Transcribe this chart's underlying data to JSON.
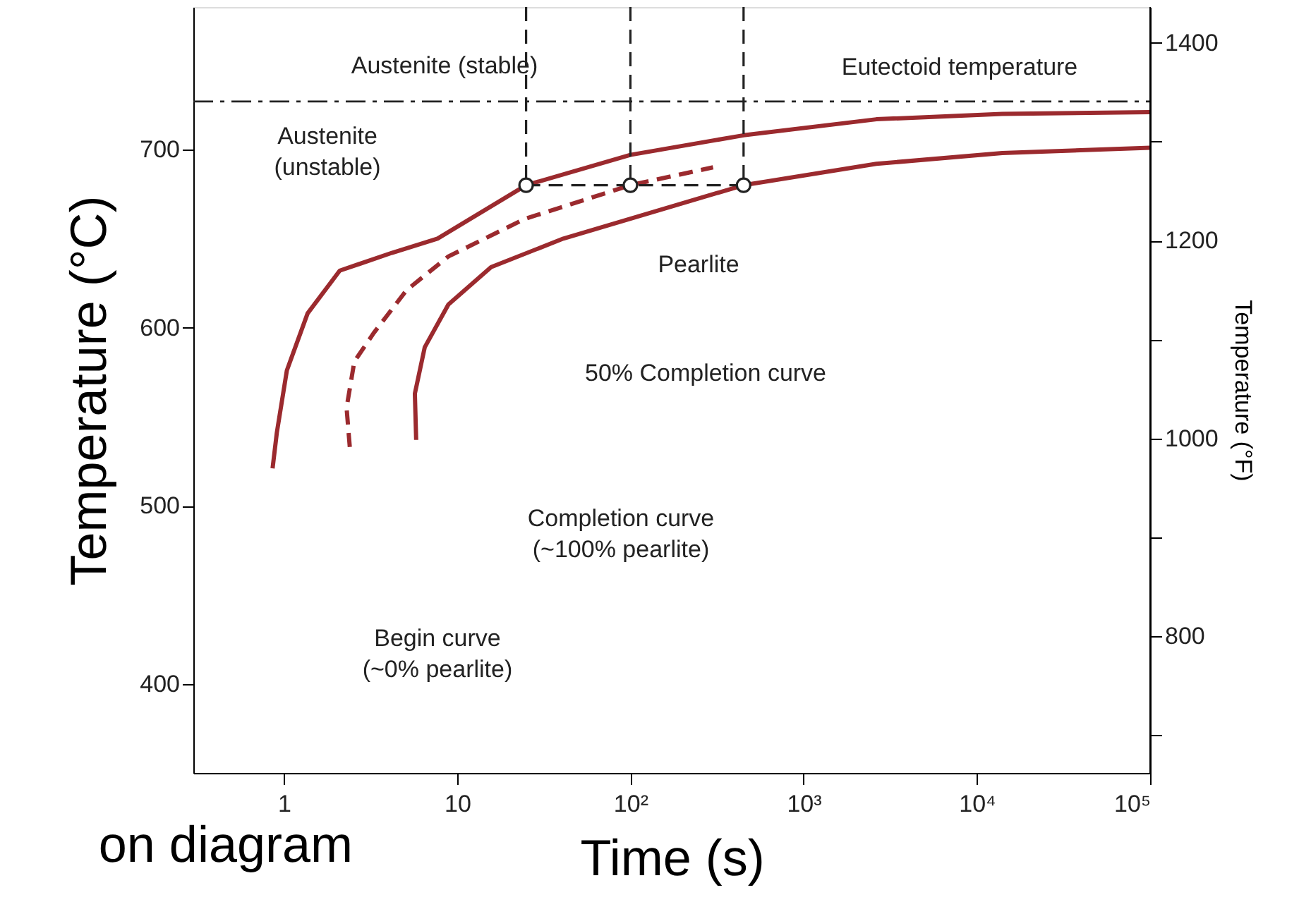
{
  "chart_data": {
    "type": "line",
    "xlabel": "Time (s)",
    "ylabel": "Temperature (°C)",
    "y2label": "Temperature (°F)",
    "log": "x",
    "xlim": [
      0.3,
      100000
    ],
    "xticks": [
      1,
      10,
      {
        "value": 100,
        "label": "10²"
      },
      {
        "value": 1000,
        "label": "10³"
      },
      {
        "value": 10000,
        "label": "10⁴"
      },
      {
        "value": 100000,
        "label": "10⁵"
      }
    ],
    "ylim": [
      350,
      780
    ],
    "yticks": [
      400,
      500,
      600,
      700
    ],
    "y2lim": [
      662,
      1436
    ],
    "y2ticks": [
      {
        "value": 700,
        "label": null
      },
      800,
      {
        "value": 900,
        "label": null
      },
      1000,
      {
        "value": 1100,
        "label": null
      },
      1200,
      {
        "value": 1300,
        "label": null
      },
      1400
    ],
    "grid": false,
    "series": [
      {
        "color": "#9b2a2e",
        "line_style": "solid",
        "x": [
          0.86,
          0.91,
          1.04,
          1.37,
          2.1,
          4.2,
          7.7,
          25,
          100,
          450,
          2630,
          14000,
          100000
        ],
        "values": [
          521,
          541,
          576,
          608,
          632,
          642,
          650,
          680,
          697,
          708,
          717,
          720,
          721
        ]
      },
      {
        "color": "#9b2a2e",
        "line_style": "dashed",
        "x": [
          2.4,
          2.3,
          2.55,
          3.3,
          5.1,
          8.9,
          24.5,
          100,
          300
        ],
        "values": [
          533,
          555,
          581,
          597,
          621,
          640,
          661,
          680,
          690
        ]
      },
      {
        "color": "#9b2a2e",
        "line_style": "solid",
        "x": [
          5.8,
          5.7,
          6.5,
          8.9,
          15.7,
          41,
          450,
          2630,
          14000,
          100000
        ],
        "values": [
          537,
          563,
          589,
          613,
          634,
          650,
          680,
          692,
          698,
          701
        ]
      },
      {
        "color": "#222222",
        "line_style": "dashed",
        "x": [
          25,
          25
        ],
        "values": [
          780,
          680
        ]
      },
      {
        "color": "#222222",
        "line_style": "dashed",
        "x": [
          100,
          100
        ],
        "values": [
          780,
          680
        ]
      },
      {
        "color": "#222222",
        "line_style": "dashed",
        "x": [
          450,
          450
        ],
        "values": [
          780,
          680
        ]
      },
      {
        "color": "#222222",
        "line_style": "dashed",
        "x": [
          25,
          450
        ],
        "values": [
          680,
          680
        ]
      },
      {
        "type": "scatter",
        "color": "#222222",
        "marker": "circle",
        "x": [
          25,
          100,
          450
        ],
        "values": [
          680,
          680,
          680
        ]
      }
    ],
    "ref_lines": [
      {
        "axis": "y",
        "value": 727,
        "line_style": "dashdot",
        "color": "#222222"
      }
    ],
    "annotations": [
      "Austenite (stable)",
      "Eutectoid temperature",
      "Austenite\n(unstable)",
      "Pearlite",
      "50% Completion curve",
      "Completion curve\n(~100% pearlite)",
      "Begin curve\n(~0% pearlite)",
      "on diagram"
    ]
  }
}
